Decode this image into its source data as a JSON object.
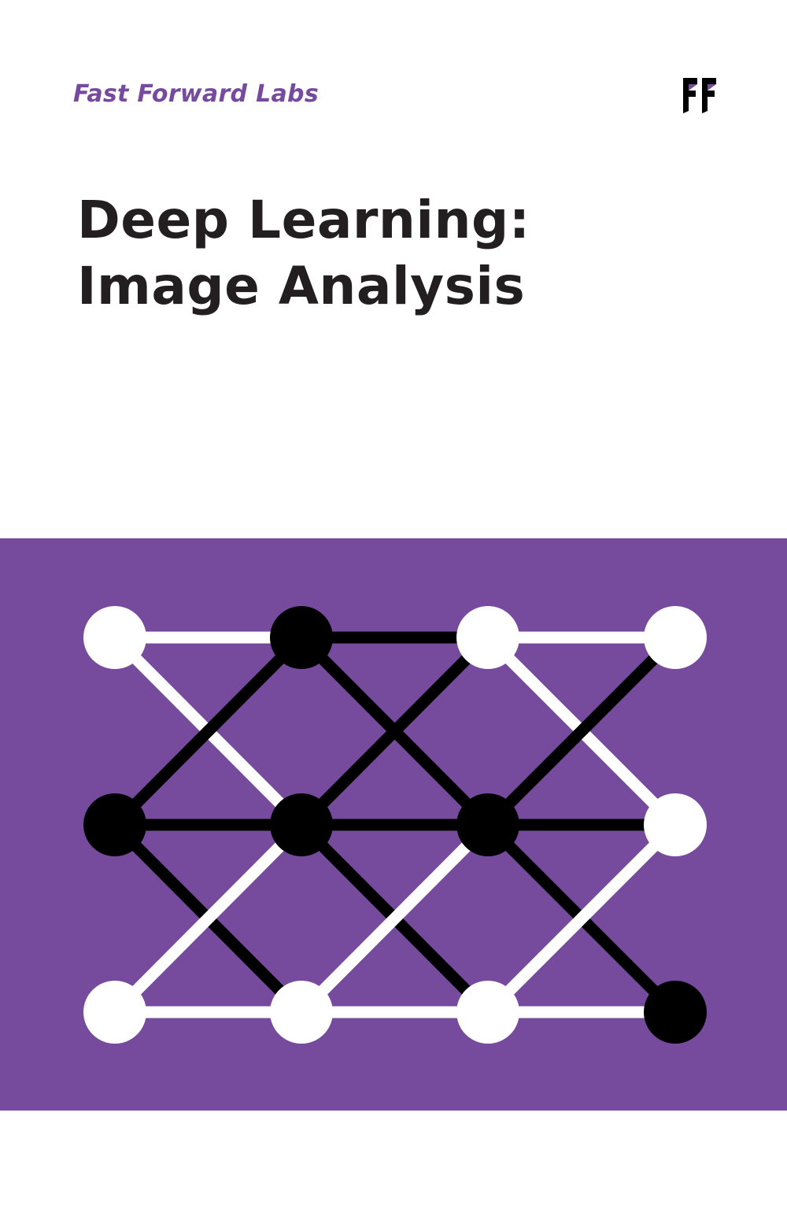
{
  "cover": {
    "publisher": "Fast Forward Labs",
    "title_line1": "Deep Learning:",
    "title_line2": "Image Analysis",
    "logo_icon": "ff-logo-icon"
  },
  "colors": {
    "accent": "#764a9c",
    "ink": "#231f20",
    "node_white": "#ffffff",
    "node_black": "#000000"
  },
  "network": {
    "columns": 4,
    "rows": 3,
    "node_states": [
      [
        "white",
        "black",
        "white",
        "white"
      ],
      [
        "black",
        "black",
        "black",
        "white"
      ],
      [
        "white",
        "white",
        "white",
        "black"
      ]
    ],
    "edges": [
      {
        "from": [
          0,
          0
        ],
        "to": [
          0,
          1
        ],
        "color": "white"
      },
      {
        "from": [
          0,
          1
        ],
        "to": [
          0,
          2
        ],
        "color": "black"
      },
      {
        "from": [
          0,
          2
        ],
        "to": [
          0,
          3
        ],
        "color": "white"
      },
      {
        "from": [
          1,
          0
        ],
        "to": [
          1,
          1
        ],
        "color": "black"
      },
      {
        "from": [
          1,
          1
        ],
        "to": [
          1,
          2
        ],
        "color": "black"
      },
      {
        "from": [
          1,
          2
        ],
        "to": [
          1,
          3
        ],
        "color": "black"
      },
      {
        "from": [
          2,
          0
        ],
        "to": [
          2,
          1
        ],
        "color": "white"
      },
      {
        "from": [
          2,
          1
        ],
        "to": [
          2,
          2
        ],
        "color": "white"
      },
      {
        "from": [
          2,
          2
        ],
        "to": [
          2,
          3
        ],
        "color": "white"
      },
      {
        "from": [
          0,
          0
        ],
        "to": [
          1,
          1
        ],
        "color": "white"
      },
      {
        "from": [
          1,
          0
        ],
        "to": [
          0,
          1
        ],
        "color": "black"
      },
      {
        "from": [
          0,
          1
        ],
        "to": [
          1,
          2
        ],
        "color": "black"
      },
      {
        "from": [
          1,
          1
        ],
        "to": [
          0,
          2
        ],
        "color": "black"
      },
      {
        "from": [
          0,
          2
        ],
        "to": [
          1,
          3
        ],
        "color": "white"
      },
      {
        "from": [
          1,
          2
        ],
        "to": [
          0,
          3
        ],
        "color": "black"
      },
      {
        "from": [
          1,
          0
        ],
        "to": [
          2,
          1
        ],
        "color": "black"
      },
      {
        "from": [
          2,
          0
        ],
        "to": [
          1,
          1
        ],
        "color": "white"
      },
      {
        "from": [
          1,
          1
        ],
        "to": [
          2,
          2
        ],
        "color": "black"
      },
      {
        "from": [
          2,
          1
        ],
        "to": [
          1,
          2
        ],
        "color": "white"
      },
      {
        "from": [
          1,
          2
        ],
        "to": [
          2,
          3
        ],
        "color": "black"
      },
      {
        "from": [
          2,
          2
        ],
        "to": [
          1,
          3
        ],
        "color": "white"
      }
    ]
  }
}
